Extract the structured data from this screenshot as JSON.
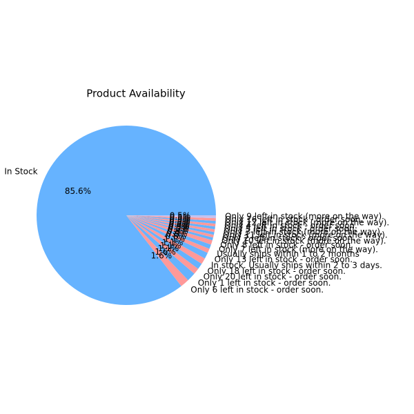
{
  "chart_data": {
    "type": "pie",
    "title": "Product Availability",
    "categories": [
      "In Stock",
      "Only 6 left in stock - order soon.",
      "Only 1 left in stock - order soon.",
      "Only 20 left in stock - order soon.",
      "Only 18 left in stock - order soon.",
      "In stock. Usually ships within 2 to 3 days.",
      "Only 13 left in stock - order soon.",
      "Usually ships within 1 to 2 months",
      "Only 7 left in stock (more on the way).",
      "Only 8 left in stock - order soon.",
      "Only 10 left in stock (more on the way).",
      "Only 2 left in stock - order soon.",
      "Only 11 left in stock (more on the way).",
      "Only 3 left in stock (more on the way).",
      "Only 5 left in stock - order soon.",
      "Only 4 left in stock - order soon.",
      "Only 12 left in stock (more on the way).",
      "Only 16 left in stock - order soon.",
      "Only 9 left in stock (more on the way)."
    ],
    "values": [
      85.6,
      1.6,
      1.6,
      1.1,
      1.1,
      1.1,
      1.1,
      0.8,
      0.8,
      0.8,
      0.5,
      0.5,
      0.5,
      0.5,
      0.5,
      0.5,
      0.5,
      0.5,
      0.5
    ],
    "value_labels": [
      "85.6%",
      "1.6%",
      "1.6%",
      "1.1%",
      "1.1%",
      "1.1%",
      "1.1%",
      "0.8%",
      "0.8%",
      "0.8%",
      "0.5%",
      "0.5%",
      "0.5%",
      "0.5%",
      "0.5%",
      "0.5%",
      "0.5%",
      "0.5%",
      "0.5%"
    ],
    "colors": [
      "#66b3ff",
      "#ff9999",
      "#66b3ff",
      "#ff9999",
      "#66b3ff",
      "#ff9999",
      "#66b3ff",
      "#ff9999",
      "#66b3ff",
      "#ff9999",
      "#66b3ff",
      "#ff9999",
      "#66b3ff",
      "#ff9999",
      "#66b3ff",
      "#ff9999",
      "#66b3ff",
      "#ff9999",
      "#c2c2f0"
    ]
  }
}
